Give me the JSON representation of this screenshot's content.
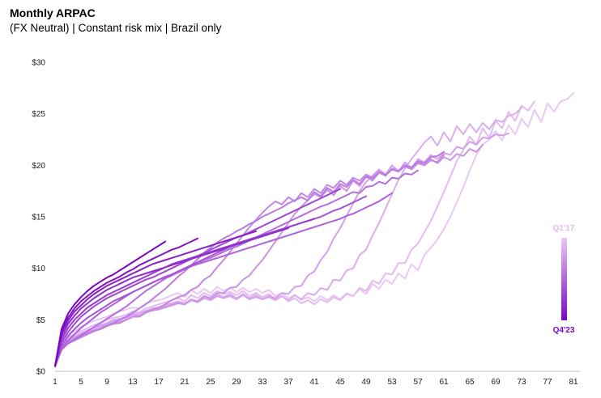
{
  "chart_data": {
    "type": "line",
    "title": "Monthly ARPAC",
    "subtitle": "(FX Neutral) | Constant risk mix | Brazil only",
    "xlabel": "",
    "ylabel": "",
    "xlim": [
      1,
      82
    ],
    "ylim": [
      0,
      30
    ],
    "x_ticks": [
      "1",
      "5",
      "9",
      "13",
      "17",
      "21",
      "25",
      "29",
      "33",
      "37",
      "41",
      "45",
      "49",
      "53",
      "57",
      "61",
      "65",
      "69",
      "73",
      "77",
      "81"
    ],
    "y_ticks": [
      "$0",
      "$5",
      "$10",
      "$15",
      "$20",
      "$25",
      "$30"
    ],
    "grid": false,
    "legend": {
      "type": "gradient",
      "placement": "right",
      "top_label": "Q1'17",
      "bottom_label": "Q4'23",
      "color_start": "#e9c8f3",
      "color_end": "#7a06c4"
    },
    "series": [
      {
        "values": [
          0.5,
          2.8,
          3.6,
          3.9,
          4.3,
          4.6,
          4.9,
          5.1,
          5.3,
          5.6,
          5.8,
          6.0,
          6.2,
          6.1,
          6.6,
          6.8,
          6.9,
          7.1,
          7.4,
          7.6,
          7.2,
          7.9,
          7.5,
          8.0,
          7.6,
          8.2,
          7.8,
          8.1,
          7.7,
          8.1,
          7.7,
          8.0,
          7.6,
          7.9,
          7.3,
          7.6,
          7.1,
          7.4,
          6.9,
          7.2,
          6.8,
          7.3,
          6.9,
          7.4,
          7.0,
          7.6,
          7.3,
          8.0,
          7.5,
          8.5,
          8.0,
          8.9,
          8.5,
          9.5,
          9.0,
          10.4,
          9.8,
          11.3,
          12.0,
          12.8,
          13.8,
          15.0,
          16.4,
          17.9,
          19.5,
          21.0,
          22.0,
          22.5,
          23.3,
          22.4,
          23.9,
          23.0,
          24.5,
          23.7,
          25.4,
          24.2,
          26.0,
          25.2,
          26.2,
          26.4,
          27.0
        ]
      },
      {
        "values": [
          0.5,
          2.6,
          3.3,
          3.6,
          3.9,
          4.2,
          4.5,
          4.7,
          5.0,
          5.2,
          5.3,
          5.5,
          5.8,
          5.7,
          6.1,
          6.3,
          6.5,
          6.7,
          6.9,
          7.1,
          6.8,
          7.4,
          7.1,
          7.6,
          7.3,
          7.8,
          7.5,
          7.7,
          7.4,
          7.8,
          7.3,
          7.6,
          7.2,
          7.5,
          7.0,
          7.3,
          6.8,
          7.1,
          6.6,
          6.9,
          6.5,
          7.0,
          6.7,
          7.2,
          6.9,
          7.5,
          7.3,
          8.1,
          7.8,
          8.8,
          8.5,
          9.5,
          9.4,
          10.5,
          10.5,
          11.8,
          12.4,
          13.5,
          14.6,
          16.0,
          17.4,
          18.9,
          20.4,
          21.5,
          22.8,
          22.0,
          23.6,
          22.7,
          24.3,
          23.6,
          25.2,
          24.3,
          25.8,
          25.3,
          26.2
        ]
      },
      {
        "values": [
          0.5,
          2.4,
          3.1,
          3.4,
          3.7,
          4.0,
          4.2,
          4.5,
          4.7,
          5.0,
          5.1,
          5.3,
          5.6,
          5.6,
          5.9,
          6.1,
          6.2,
          6.4,
          6.6,
          6.8,
          6.6,
          7.0,
          6.8,
          7.3,
          7.0,
          7.5,
          7.2,
          7.5,
          7.1,
          7.5,
          7.1,
          7.4,
          7.0,
          7.2,
          6.9,
          7.3,
          6.9,
          7.4,
          7.0,
          7.6,
          7.4,
          8.1,
          7.9,
          8.9,
          8.8,
          9.8,
          10.0,
          11.3,
          11.8,
          13.2,
          14.4,
          15.8,
          17.2,
          18.6,
          19.7,
          20.6,
          21.4,
          22.2,
          22.8,
          21.9,
          23.2,
          22.3,
          23.8,
          23.0,
          24.0,
          23.2,
          24.1,
          23.5,
          24.4,
          24.2,
          24.8,
          25.0,
          25.6
        ]
      },
      {
        "values": [
          0.5,
          2.4,
          3.0,
          3.3,
          3.6,
          3.9,
          4.2,
          4.4,
          4.6,
          4.9,
          5.0,
          5.2,
          5.5,
          5.4,
          5.8,
          6.0,
          6.1,
          6.3,
          6.5,
          6.7,
          6.5,
          6.9,
          6.7,
          7.1,
          6.9,
          7.3,
          7.1,
          7.3,
          7.0,
          7.4,
          7.0,
          7.2,
          7.0,
          7.3,
          7.1,
          7.6,
          7.5,
          8.2,
          8.3,
          9.3,
          9.7,
          10.8,
          11.6,
          12.9,
          13.9,
          15.1,
          16.3,
          17.5,
          18.4,
          19.0,
          19.6,
          19.1,
          20.0,
          19.4,
          20.3,
          19.7,
          20.6,
          20.3,
          21.0,
          20.6,
          21.2,
          21.0,
          21.8,
          21.6,
          22.3,
          22.0,
          22.7,
          22.6,
          23.0,
          22.9,
          23.1
        ]
      },
      {
        "values": [
          0.5,
          2.3,
          2.9,
          3.2,
          3.5,
          3.8,
          4.0,
          4.2,
          4.5,
          4.7,
          4.8,
          5.0,
          5.3,
          5.3,
          5.7,
          5.9,
          6.0,
          6.2,
          6.4,
          6.6,
          6.5,
          6.9,
          6.8,
          7.3,
          7.1,
          7.6,
          7.6,
          8.1,
          8.2,
          8.9,
          9.3,
          10.1,
          10.8,
          11.7,
          12.6,
          13.5,
          14.4,
          15.3,
          16.0,
          16.6,
          17.2,
          16.9,
          17.6,
          17.1,
          18.0,
          17.5,
          18.5,
          18.0,
          18.9,
          18.5,
          19.3,
          19.0,
          19.7,
          19.5,
          20.0,
          19.8,
          20.3,
          20.0,
          20.6,
          20.2,
          20.8,
          20.5,
          21.1,
          20.9,
          21.6,
          21.3,
          22.0
        ]
      },
      {
        "values": [
          0.5,
          2.2,
          2.8,
          3.1,
          3.4,
          3.7,
          3.9,
          4.1,
          4.4,
          4.6,
          4.7,
          5.0,
          5.3,
          5.3,
          5.7,
          6.0,
          6.2,
          6.5,
          6.9,
          7.2,
          7.4,
          7.9,
          8.2,
          8.9,
          9.3,
          10.1,
          10.8,
          11.6,
          12.4,
          13.2,
          14.0,
          14.7,
          15.4,
          16.0,
          16.5,
          16.2,
          16.9,
          16.5,
          17.3,
          16.9,
          17.7,
          17.3,
          18.1,
          17.8,
          18.5,
          18.1,
          18.8,
          18.5,
          19.1,
          18.8,
          19.4,
          19.1,
          19.6,
          19.4,
          19.9,
          19.6,
          20.2,
          20.0,
          20.5,
          20.3,
          21.0
        ]
      },
      {
        "values": [
          0.5,
          2.1,
          2.7,
          3.0,
          3.3,
          3.6,
          3.9,
          4.1,
          4.4,
          4.7,
          5.0,
          5.3,
          5.7,
          6.1,
          6.5,
          7.0,
          7.5,
          8.0,
          8.6,
          9.2,
          9.7,
          10.3,
          10.9,
          11.5,
          12.0,
          12.5,
          12.9,
          13.2,
          13.6,
          13.9,
          14.3,
          14.6,
          15.0,
          15.3,
          15.6,
          15.9,
          16.3,
          16.6,
          16.9,
          16.6,
          17.4,
          17.0,
          17.8,
          17.4,
          18.2,
          17.9,
          18.6,
          18.2,
          18.9,
          18.7,
          19.3,
          19.0,
          19.6,
          19.4,
          20.0,
          19.8,
          20.4,
          20.2,
          20.8,
          20.9,
          21.3
        ]
      },
      {
        "values": [
          0.5,
          2.1,
          2.7,
          3.1,
          3.5,
          3.9,
          4.3,
          4.7,
          5.1,
          5.5,
          5.9,
          6.3,
          6.8,
          7.3,
          7.8,
          8.2,
          8.6,
          9.0,
          9.3,
          9.6,
          9.9,
          10.2,
          10.5,
          10.8,
          11.0,
          11.3,
          11.6,
          11.9,
          12.1,
          12.4,
          12.7,
          13.0,
          13.3,
          13.6,
          13.9,
          14.2,
          14.5,
          14.8,
          15.1,
          15.4,
          15.7,
          16.0,
          16.2,
          16.5,
          16.8,
          17.1,
          17.4,
          17.3,
          17.9,
          18.0,
          18.4,
          18.2,
          18.8,
          18.7,
          19.2,
          19.1,
          19.5
        ]
      },
      {
        "values": [
          0.5,
          2.2,
          3.0,
          3.6,
          4.2,
          4.7,
          5.2,
          5.7,
          6.1,
          6.5,
          6.9,
          7.3,
          7.7,
          8.0,
          8.3,
          8.6,
          8.9,
          9.2,
          9.4,
          9.7,
          9.9,
          10.2,
          10.4,
          10.6,
          10.8,
          11.0,
          11.2,
          11.4,
          11.6,
          11.8,
          12.0,
          12.2,
          12.4,
          12.6,
          12.8,
          13.0,
          13.2,
          13.4,
          13.6,
          13.8,
          14.0,
          14.2,
          14.4,
          14.6,
          14.8,
          15.1,
          15.3,
          15.6,
          15.9,
          16.2,
          16.5,
          16.9,
          17.3
        ]
      },
      {
        "values": [
          0.5,
          2.5,
          3.4,
          4.1,
          4.7,
          5.2,
          5.6,
          6.0,
          6.4,
          6.8,
          7.1,
          7.4,
          7.7,
          8.0,
          8.3,
          8.6,
          8.9,
          9.1,
          9.4,
          9.7,
          10.0,
          10.3,
          10.6,
          10.9,
          11.2,
          11.5,
          11.8,
          12.1,
          12.4,
          12.6,
          12.8,
          13.0,
          13.2,
          13.4,
          13.6,
          13.8,
          14.0,
          14.2,
          14.4,
          14.6,
          14.8,
          15.0,
          15.3,
          15.6,
          15.8,
          16.1,
          16.4,
          16.7,
          17.0
        ]
      },
      {
        "values": [
          0.5,
          2.8,
          3.8,
          4.6,
          5.3,
          5.8,
          6.3,
          6.7,
          7.1,
          7.4,
          7.7,
          8.0,
          8.3,
          8.6,
          8.9,
          9.1,
          9.4,
          9.7,
          10.0,
          10.3,
          10.6,
          10.9,
          11.2,
          11.5,
          11.8,
          12.1,
          12.4,
          12.7,
          13.0,
          13.2,
          13.5,
          13.8,
          14.1,
          14.4,
          14.7,
          15.0,
          15.3,
          15.6,
          15.9,
          16.2,
          16.5,
          16.8,
          17.1,
          17.4,
          17.7
        ]
      },
      {
        "values": [
          0.5,
          3.1,
          4.2,
          5.0,
          5.6,
          6.2,
          6.6,
          7.0,
          7.4,
          7.7,
          8.0,
          8.3,
          8.6,
          8.9,
          9.2,
          9.5,
          9.8,
          10.1,
          10.4,
          10.6,
          10.8,
          11.0,
          11.2,
          11.4,
          11.6,
          11.8,
          12.0,
          12.2,
          12.4,
          12.6,
          12.8,
          13.0,
          13.2,
          13.4,
          13.6,
          13.8,
          14.0,
          14.2,
          14.4,
          14.6,
          14.8
        ]
      },
      {
        "values": [
          0.5,
          3.4,
          4.6,
          5.4,
          6.1,
          6.6,
          7.1,
          7.5,
          7.9,
          8.2,
          8.5,
          8.8,
          9.1,
          9.3,
          9.5,
          9.7,
          9.9,
          10.1,
          10.3,
          10.5,
          10.7,
          10.9,
          11.1,
          11.3,
          11.5,
          11.7,
          11.9,
          12.1,
          12.3,
          12.5,
          12.7,
          12.9,
          13.1,
          13.3,
          13.5,
          13.7,
          13.9
        ]
      },
      {
        "values": [
          0.5,
          3.6,
          4.9,
          5.8,
          6.4,
          7.0,
          7.5,
          7.9,
          8.3,
          8.6,
          8.9,
          9.2,
          9.5,
          9.8,
          10.1,
          10.4,
          10.6,
          10.8,
          11.0,
          11.2,
          11.4,
          11.6,
          11.8,
          12.0,
          12.2,
          12.4,
          12.6,
          12.8,
          13.0,
          13.2,
          13.4,
          13.6
        ]
      },
      {
        "values": [
          0.5,
          3.9,
          5.2,
          6.1,
          6.8,
          7.3,
          7.8,
          8.2,
          8.6,
          8.9,
          9.2,
          9.6,
          9.9,
          10.3,
          10.6,
          10.9,
          11.2,
          11.5,
          11.8,
          12.0,
          12.3,
          12.6,
          12.9
        ]
      },
      {
        "values": [
          0.5,
          4.1,
          5.6,
          6.5,
          7.2,
          7.8,
          8.3,
          8.7,
          9.1,
          9.4,
          9.8,
          10.2,
          10.6,
          11.0,
          11.4,
          11.8,
          12.2,
          12.6
        ]
      }
    ]
  }
}
